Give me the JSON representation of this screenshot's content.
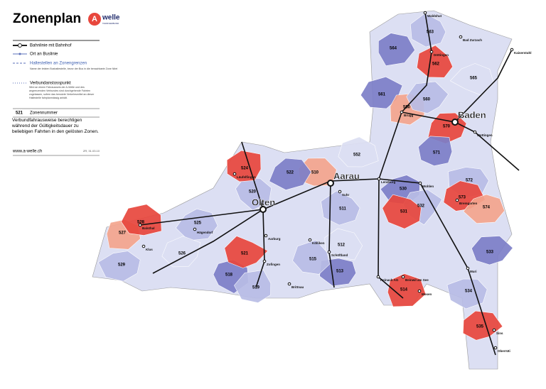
{
  "header": {
    "title": "Zonenplan",
    "logo": "welle",
    "logo_sub": "TARIFVERBUND"
  },
  "legend": {
    "items": [
      {
        "label": "Bahnlinie mit Bahnhof"
      },
      {
        "label": "Ort an Buslinie"
      },
      {
        "label": "Haltestellen an Zonengrenzen",
        "note": "Name der letzten Bushaltestelle, bevor der Bus in die benachbarte Zone fährt"
      },
      {
        "label": "Verbundanstosspunkt",
        "note": "Wird an einem Fahrausweis der A-Welle und des angrenzenden Verbundes sind durchgehende Fahrten zugelassen, sofern das benutzte Verkehrsmittel an dieser Haltestelle fahrplanmässig anhält."
      },
      {
        "code": "521",
        "label": "Zonennummer"
      }
    ],
    "text": "Verbundfahrausweise berechtigen während der Gültigkeitsdauer zu beliebigen Fahrten in den gelösten Zonen.",
    "url": "www.a-welle.ch",
    "date": "ZR, 31.03.10"
  },
  "map": {
    "zones": [
      {
        "number": "563",
        "color": "#b9bde6"
      },
      {
        "number": "564",
        "color": "#7d7fc8"
      },
      {
        "number": "562",
        "color": "#e8473d"
      },
      {
        "number": "565",
        "color": "#dcdff3"
      },
      {
        "number": "561",
        "color": "#7d7fc8"
      },
      {
        "number": "550",
        "color": "#f4a58e"
      },
      {
        "number": "560",
        "color": "#b9bde6"
      },
      {
        "number": "570",
        "color": "#e8473d"
      },
      {
        "number": "571",
        "color": "#7d7fc8"
      },
      {
        "number": "572",
        "color": "#b9bde6"
      },
      {
        "number": "573",
        "color": "#e8473d"
      },
      {
        "number": "574",
        "color": "#f4a58e"
      },
      {
        "number": "552",
        "color": "#dcdff3"
      },
      {
        "number": "530",
        "color": "#7d7fc8"
      },
      {
        "number": "532",
        "color": "#b9bde6"
      },
      {
        "number": "531",
        "color": "#e8473d"
      },
      {
        "number": "510",
        "color": "#f4a58e"
      },
      {
        "number": "511",
        "color": "#b9bde6"
      },
      {
        "number": "512",
        "color": "#dcdff3"
      },
      {
        "number": "513",
        "color": "#7d7fc8"
      },
      {
        "number": "514",
        "color": "#e8473d"
      },
      {
        "number": "515",
        "color": "#b9bde6"
      },
      {
        "number": "518",
        "color": "#7d7fc8"
      },
      {
        "number": "519",
        "color": "#b9bde6"
      },
      {
        "number": "520",
        "color": "#b9bde6"
      },
      {
        "number": "521",
        "color": "#e8473d"
      },
      {
        "number": "522",
        "color": "#7d7fc8"
      },
      {
        "number": "524",
        "color": "#e8473d"
      },
      {
        "number": "525",
        "color": "#b9bde6"
      },
      {
        "number": "526",
        "color": "#dcdff3"
      },
      {
        "number": "527",
        "color": "#f4a58e"
      },
      {
        "number": "528",
        "color": "#e8473d"
      },
      {
        "number": "529",
        "color": "#b9bde6"
      },
      {
        "number": "533",
        "color": "#7d7fc8"
      },
      {
        "number": "534",
        "color": "#b9bde6"
      },
      {
        "number": "535",
        "color": "#e8473d"
      }
    ],
    "cities": [
      "Aarau",
      "Olten",
      "Baden"
    ],
    "places": [
      "Waldshut",
      "Bad Zurzach",
      "Kaiserstuhl",
      "Döttingen",
      "Brugg",
      "Lenzburg",
      "Wohlen",
      "Suhr",
      "Zofingen",
      "Aarburg",
      "Reinach AG",
      "Beinwil am See",
      "Muri",
      "Sins",
      "Oberrüti",
      "Bremgarten",
      "Wettingen",
      "Schöftland",
      "Kölliken",
      "Brittnau",
      "Hägendorf",
      "Balsthal",
      "Klus",
      "Läufelfingen",
      "Mosen"
    ]
  }
}
